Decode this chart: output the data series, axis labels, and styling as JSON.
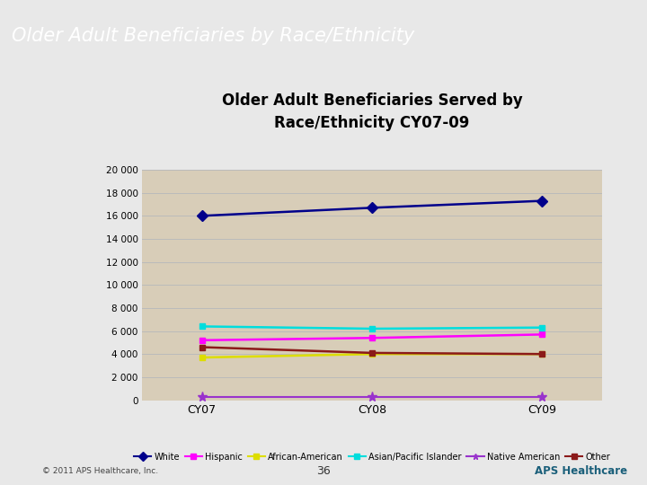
{
  "title_banner": "Older Adult Beneficiaries by Race/Ethnicity",
  "chart_title": "Older Adult Beneficiaries Served by\nRace/Ethnicity CY07-09",
  "banner_color": "#1a5f7a",
  "banner_text_color": "#ffffff",
  "page_bg_color": "#e8e8e8",
  "sidebar_color": "#7a8a96",
  "chart_outer_bg": "#f5f3ee",
  "chart_inner_bg": "#d8cdb8",
  "x_labels": [
    "CY07",
    "CY08",
    "CY09"
  ],
  "x_positions": [
    0,
    1,
    2
  ],
  "series": [
    {
      "label": "White",
      "values": [
        16000,
        16700,
        17300
      ],
      "color": "#00008B",
      "marker": "D",
      "linewidth": 1.8,
      "markersize": 6
    },
    {
      "label": "Hispanic",
      "values": [
        5200,
        5400,
        5700
      ],
      "color": "#FF00FF",
      "marker": "s",
      "linewidth": 1.8,
      "markersize": 5
    },
    {
      "label": "African-American",
      "values": [
        3700,
        4000,
        4000
      ],
      "color": "#DDDD00",
      "marker": "s",
      "linewidth": 1.8,
      "markersize": 5
    },
    {
      "label": "Asian/Pacific Islander",
      "values": [
        6400,
        6200,
        6300
      ],
      "color": "#00DDDD",
      "marker": "s",
      "linewidth": 1.8,
      "markersize": 5
    },
    {
      "label": "Native American",
      "values": [
        300,
        300,
        300
      ],
      "color": "#9933CC",
      "marker": "*",
      "linewidth": 1.5,
      "markersize": 8
    },
    {
      "label": "Other",
      "values": [
        4600,
        4100,
        4000
      ],
      "color": "#8B1A1A",
      "marker": "s",
      "linewidth": 1.8,
      "markersize": 5
    }
  ],
  "ylim": [
    0,
    20000
  ],
  "yticks": [
    0,
    2000,
    4000,
    6000,
    8000,
    10000,
    12000,
    14000,
    16000,
    18000,
    20000
  ],
  "footnote": "36",
  "footer_text": "© 2011 APS Healthcare, Inc.",
  "grid_color": "#bbbbbb"
}
